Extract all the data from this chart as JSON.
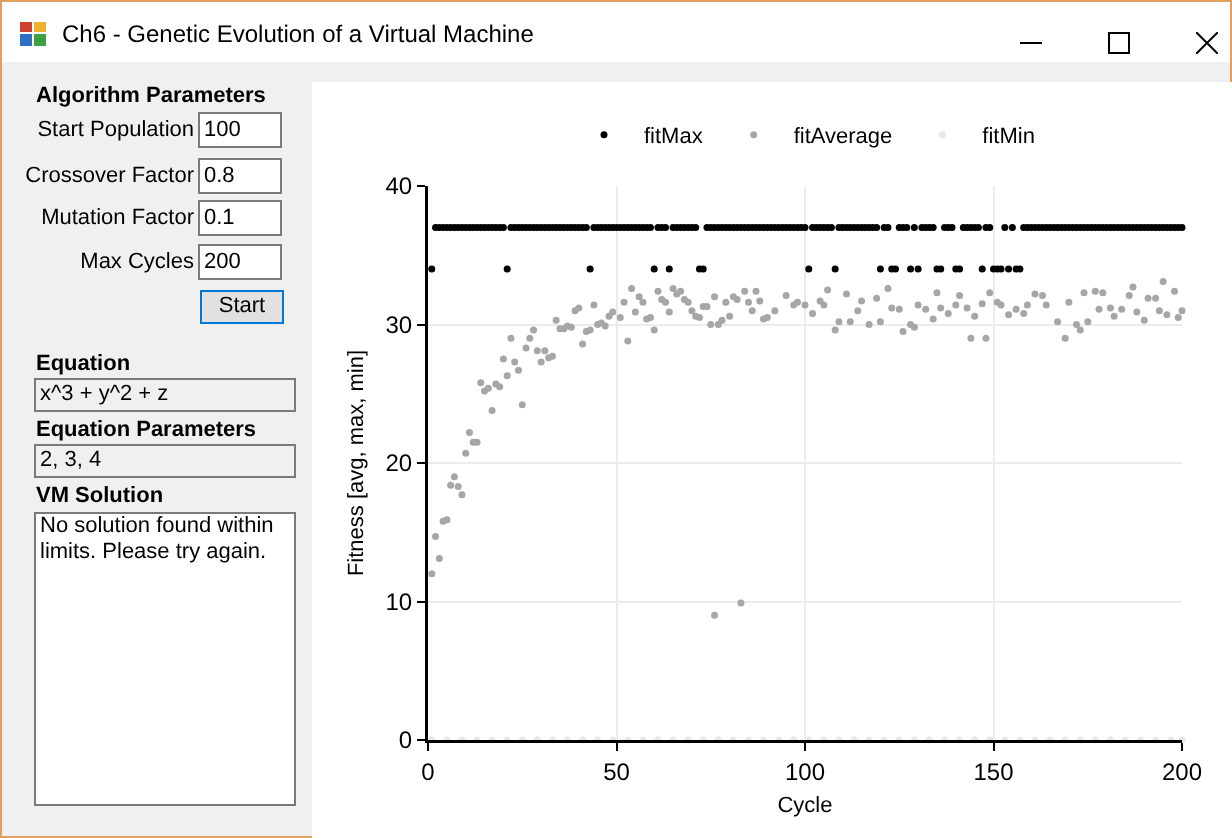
{
  "chart_data": [
    {
      "type": "other",
      "title": "Ch6 - Genetic Evolution of a Virtual Machine",
      "annotations": [
        "Algorithm Parameters",
        "Start Population",
        "100",
        "Crossover Factor",
        "0.8",
        "Mutation Factor",
        "0.1",
        "Max Cycles",
        "200",
        "Start",
        "Equation",
        "x^3 + y^2 + z",
        "Equation Parameters",
        "2, 3, 4",
        "VM Solution",
        "No solution found within limits. Please try again."
      ]
    },
    {
      "type": "scatter",
      "xlabel": "Cycle",
      "ylabel": "Fitness [avg, max, min]",
      "xlim": [
        0,
        200
      ],
      "xticks": [
        0,
        50,
        100,
        150,
        200
      ],
      "ylim": [
        0,
        40
      ],
      "yticks": [
        0,
        10,
        20,
        30,
        40
      ],
      "grid": true,
      "legend": "top",
      "marker": "circle",
      "series": [
        {
          "name": "fitMax",
          "color": "#000000",
          "x": [
            1,
            2,
            3,
            4,
            5,
            6,
            7,
            8,
            9,
            10,
            11,
            12,
            13,
            14,
            15,
            16,
            17,
            18,
            19,
            20,
            21,
            22,
            23,
            24,
            25,
            26,
            27,
            28,
            29,
            30,
            31,
            32,
            33,
            34,
            35,
            36,
            37,
            38,
            39,
            40,
            41,
            42,
            43,
            44,
            45,
            46,
            47,
            48,
            49,
            50,
            51,
            52,
            53,
            54,
            55,
            56,
            57,
            58,
            59,
            60,
            61,
            62,
            63,
            64,
            65,
            66,
            67,
            68,
            69,
            70,
            71,
            72,
            73,
            74,
            75,
            76,
            77,
            78,
            79,
            80,
            81,
            82,
            83,
            84,
            85,
            86,
            87,
            88,
            89,
            90,
            91,
            92,
            93,
            94,
            95,
            96,
            97,
            98,
            99,
            100,
            101,
            102,
            103,
            104,
            105,
            106,
            107,
            108,
            109,
            110,
            111,
            112,
            113,
            114,
            115,
            116,
            117,
            118,
            119,
            120,
            121,
            122,
            123,
            124,
            125,
            126,
            127,
            128,
            129,
            130,
            131,
            132,
            133,
            134,
            135,
            136,
            137,
            138,
            139,
            140,
            141,
            142,
            143,
            144,
            145,
            146,
            147,
            148,
            149,
            150,
            151,
            152,
            153,
            154,
            155,
            156,
            157,
            158,
            159,
            160,
            161,
            162,
            163,
            164,
            165,
            166,
            167,
            168,
            169,
            170,
            171,
            172,
            173,
            174,
            175,
            176,
            177,
            178,
            179,
            180,
            181,
            182,
            183,
            184,
            185,
            186,
            187,
            188,
            189,
            190,
            191,
            192,
            193,
            194,
            195,
            196,
            197,
            198,
            199,
            200
          ],
          "values": [
            34,
            37,
            37,
            37,
            37,
            37,
            37,
            37,
            37,
            37,
            37,
            37,
            37,
            37,
            37,
            37,
            37,
            37,
            37,
            37,
            34,
            37,
            37,
            37,
            37,
            37,
            37,
            37,
            37,
            37,
            37,
            37,
            37,
            37,
            37,
            37,
            37,
            37,
            37,
            37,
            37,
            37,
            34,
            37,
            37,
            37,
            37,
            37,
            37,
            37,
            37,
            37,
            37,
            37,
            37,
            37,
            37,
            37,
            37,
            34,
            37,
            37,
            37,
            34,
            37,
            37,
            37,
            37,
            37,
            37,
            37,
            34,
            34,
            37,
            37,
            37,
            37,
            37,
            37,
            37,
            37,
            37,
            37,
            37,
            37,
            37,
            37,
            37,
            37,
            37,
            37,
            37,
            37,
            37,
            37,
            37,
            37,
            37,
            37,
            37,
            34,
            37,
            37,
            37,
            37,
            37,
            37,
            34,
            37,
            37,
            37,
            37,
            37,
            37,
            37,
            37,
            37,
            37,
            37,
            34,
            37,
            37,
            34,
            34,
            37,
            37,
            37,
            34,
            37,
            34,
            37,
            37,
            37,
            37,
            34,
            34,
            37,
            37,
            37,
            34,
            34,
            37,
            37,
            37,
            37,
            37,
            34,
            37,
            37,
            34,
            34,
            34,
            37,
            34,
            37,
            34,
            34,
            37,
            37,
            37,
            37,
            37,
            37,
            37,
            37,
            37,
            37,
            37,
            37,
            37,
            37,
            37,
            37,
            37,
            37,
            37,
            37,
            37,
            37,
            37,
            37,
            37,
            37,
            37,
            37,
            37,
            37,
            37,
            37,
            37,
            37,
            37,
            37,
            37,
            37,
            37,
            37,
            37,
            37,
            37
          ]
        },
        {
          "name": "fitAverage",
          "color": "#a6a6a6",
          "x": [
            1,
            2,
            3,
            4,
            5,
            6,
            7,
            8,
            9,
            10,
            11,
            12,
            13,
            14,
            15,
            16,
            17,
            18,
            19,
            20,
            21,
            22,
            23,
            24,
            25,
            26,
            27,
            28,
            29,
            30,
            31,
            32,
            33,
            34,
            35,
            36,
            37,
            38,
            39,
            40,
            41,
            42,
            43,
            44,
            45,
            46,
            47,
            48,
            49,
            51,
            52,
            53,
            54,
            55,
            56,
            57,
            58,
            59,
            60,
            61,
            62,
            63,
            64,
            65,
            66,
            67,
            68,
            69,
            70,
            71,
            72,
            73,
            74,
            75,
            76,
            76,
            77,
            78,
            79,
            80,
            81,
            82,
            83,
            84,
            85,
            86,
            87,
            88,
            89,
            90,
            92,
            95,
            97,
            98,
            100,
            102,
            104,
            105,
            106,
            108,
            109,
            111,
            112,
            114,
            115,
            117,
            119,
            120,
            122,
            123,
            125,
            126,
            128,
            129,
            130,
            132,
            134,
            135,
            136,
            138,
            140,
            141,
            143,
            144,
            145,
            147,
            148,
            149,
            151,
            152,
            154,
            156,
            158,
            159,
            161,
            163,
            164,
            167,
            169,
            170,
            172,
            173,
            174,
            175,
            177,
            178,
            179,
            181,
            182,
            184,
            186,
            187,
            188,
            190,
            191,
            193,
            194,
            195,
            196,
            198,
            199,
            200
          ],
          "values": [
            12,
            14.7,
            13.1,
            15.8,
            15.9,
            18.4,
            19,
            18.3,
            17.7,
            20.7,
            22.2,
            21.5,
            21.5,
            25.8,
            25.2,
            25.4,
            23.8,
            25.7,
            25.5,
            27.5,
            26.3,
            29,
            27.3,
            26.7,
            24.2,
            28.3,
            29,
            29.6,
            28.1,
            27.3,
            28.1,
            27.6,
            27.7,
            30.3,
            29.7,
            29.7,
            29.9,
            29.8,
            31,
            31.2,
            28.6,
            29.5,
            29.6,
            31.4,
            30,
            30.1,
            29.9,
            30.6,
            30.9,
            30.5,
            31.6,
            28.8,
            32.6,
            30.9,
            32,
            31.6,
            30.4,
            30.5,
            29.6,
            32.4,
            31.8,
            31.6,
            30.9,
            32.6,
            32.2,
            32.4,
            31.8,
            31.6,
            31,
            30.6,
            30.5,
            31.3,
            31.3,
            30,
            9,
            32,
            30,
            30.3,
            31.6,
            30.6,
            32,
            31.8,
            9.9,
            32.4,
            31.6,
            31,
            32.4,
            31.7,
            30.4,
            30.5,
            31,
            32.1,
            31.4,
            31.6,
            31.4,
            30.8,
            31.7,
            31.4,
            32.5,
            29.6,
            30.2,
            32.2,
            30.2,
            31,
            31.7,
            30,
            31.9,
            30.2,
            32.6,
            31.2,
            31.1,
            29.5,
            30,
            29.8,
            31.4,
            31.1,
            30.4,
            32.3,
            31.2,
            30.8,
            31.4,
            32.1,
            31.2,
            29,
            30.6,
            31.5,
            29,
            32.3,
            31.6,
            31.4,
            30.7,
            31.1,
            30.8,
            31.4,
            32.2,
            32.1,
            31.4,
            30.2,
            29,
            31.6,
            30,
            29.6,
            32.3,
            30.2,
            32.4,
            31.1,
            32.3,
            31.2,
            30.6,
            31.1,
            32.1,
            32.7,
            30.9,
            30.3,
            31.9,
            31.9,
            31,
            33.1,
            30.7,
            32.4,
            30.5,
            31
          ]
        },
        {
          "name": "fitMin",
          "color": "#e8e8e8",
          "x": [
            1,
            5,
            9,
            13,
            17,
            21,
            25,
            29,
            33,
            37,
            41,
            45,
            49,
            53,
            57,
            61,
            65,
            69,
            73,
            77,
            81,
            85,
            89,
            93,
            97,
            101,
            105,
            109,
            113,
            117,
            121,
            125,
            129,
            133,
            137,
            141,
            145,
            149,
            153,
            157,
            161,
            165,
            169,
            173,
            177,
            181,
            185,
            189,
            193,
            197,
            200
          ],
          "values": [
            0,
            0,
            0,
            0,
            0,
            0,
            0,
            0,
            0,
            0,
            0,
            0,
            0,
            0,
            0,
            0,
            0,
            0,
            0,
            0,
            0,
            0,
            0,
            0,
            0,
            0,
            0,
            0,
            0,
            0,
            0,
            0,
            0,
            0,
            0,
            0,
            0,
            0,
            0,
            0,
            0,
            0,
            0,
            0,
            0,
            0,
            0,
            0,
            0,
            0,
            0
          ]
        }
      ]
    }
  ]
}
